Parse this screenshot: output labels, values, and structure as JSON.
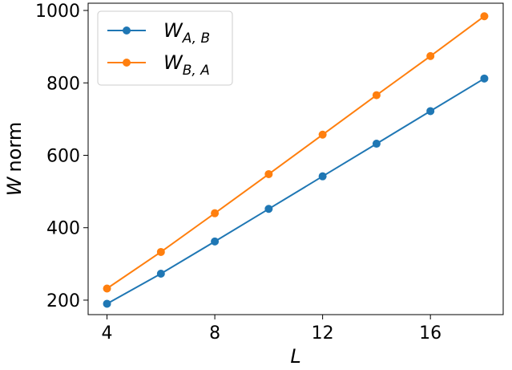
{
  "chart_data": {
    "type": "line",
    "x": [
      4,
      6,
      8,
      10,
      12,
      14,
      16,
      18
    ],
    "xlabel": "L",
    "ylabel_var": "W",
    "ylabel_text": "norm",
    "xlim": [
      3.3,
      18.7
    ],
    "ylim": [
      160,
      1020
    ],
    "xticks": [
      4,
      8,
      12,
      16
    ],
    "yticks": [
      200,
      400,
      600,
      800,
      1000
    ],
    "grid": false,
    "legend_position": "top-left",
    "series": [
      {
        "name": "W_{A,B}",
        "name_main": "W",
        "name_sub": "A, B",
        "color": "#1f77b4",
        "values": [
          190,
          273,
          362,
          452,
          542,
          632,
          722,
          812
        ]
      },
      {
        "name": "W_{B,A}",
        "name_main": "W",
        "name_sub": "B, A",
        "color": "#ff7f0e",
        "values": [
          232,
          333,
          440,
          548,
          657,
          766,
          874,
          984
        ]
      }
    ]
  }
}
